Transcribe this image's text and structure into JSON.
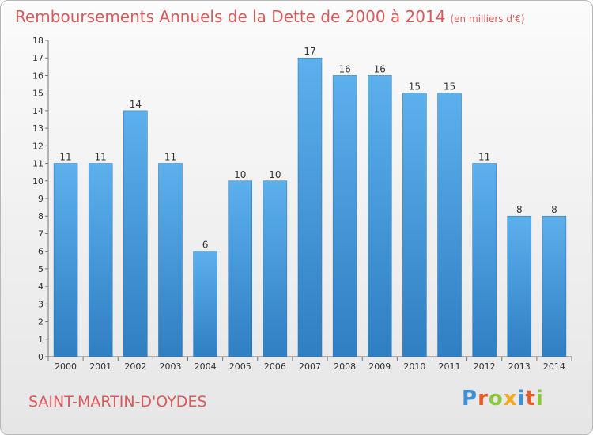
{
  "title": "Remboursements Annuels de la Dette de 2000 à 2014",
  "unit": "(en milliers d'€)",
  "commune": "SAINT-MARTIN-D'OYDES",
  "logo_text": "Proxiti",
  "colors": {
    "title": "#d95a5a",
    "bar_light": "#5cb0ec",
    "bar_dark": "#2f7fc3",
    "logo": [
      "#3d8fd6",
      "#e85c2a",
      "#8cc63f",
      "#f4a81d",
      "#3d8fd6",
      "#e85c2a",
      "#8cc63f"
    ]
  },
  "chart_data": {
    "type": "bar",
    "title": "Remboursements Annuels de la Dette de 2000 à 2014",
    "ylabel": "",
    "xlabel": "",
    "ylim": [
      0,
      18
    ],
    "yticks": [
      0,
      1,
      2,
      3,
      4,
      5,
      6,
      7,
      8,
      9,
      10,
      11,
      12,
      13,
      14,
      15,
      16,
      17,
      18
    ],
    "categories": [
      "2000",
      "2001",
      "2002",
      "2003",
      "2004",
      "2005",
      "2006",
      "2007",
      "2008",
      "2009",
      "2010",
      "2011",
      "2012",
      "2013",
      "2014"
    ],
    "values": [
      11,
      11,
      14,
      11,
      6,
      10,
      10,
      17,
      16,
      16,
      15,
      15,
      11,
      8,
      8
    ],
    "grid": false,
    "legend": "none"
  }
}
